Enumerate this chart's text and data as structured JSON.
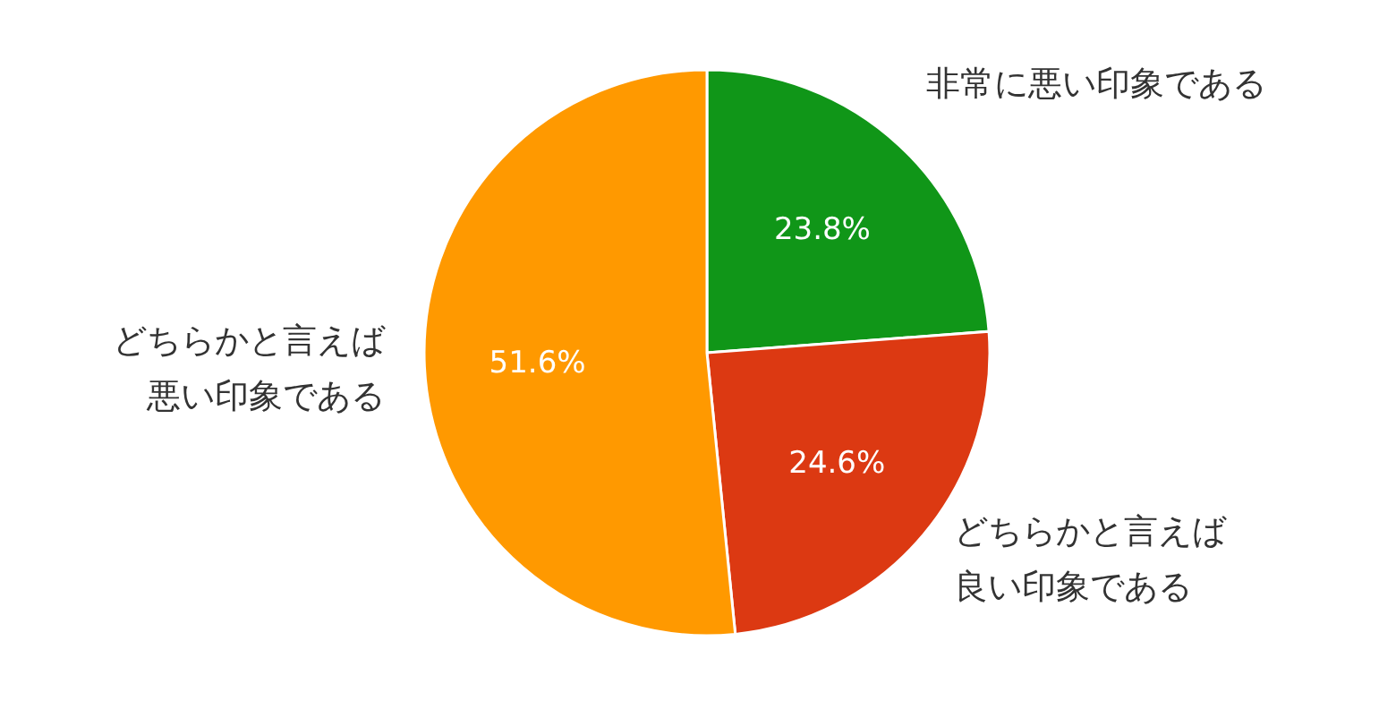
{
  "chart_data": {
    "type": "pie",
    "categories": [
      "非常に悪い印象である",
      "どちらかと言えば良い印象である",
      "どちらかと言えば悪い印象である"
    ],
    "values": [
      23.8,
      24.6,
      51.6
    ],
    "value_labels": [
      "23.8%",
      "24.6%",
      "51.6%"
    ],
    "colors": [
      "#109618",
      "#dc3912",
      "#ff9900"
    ]
  }
}
